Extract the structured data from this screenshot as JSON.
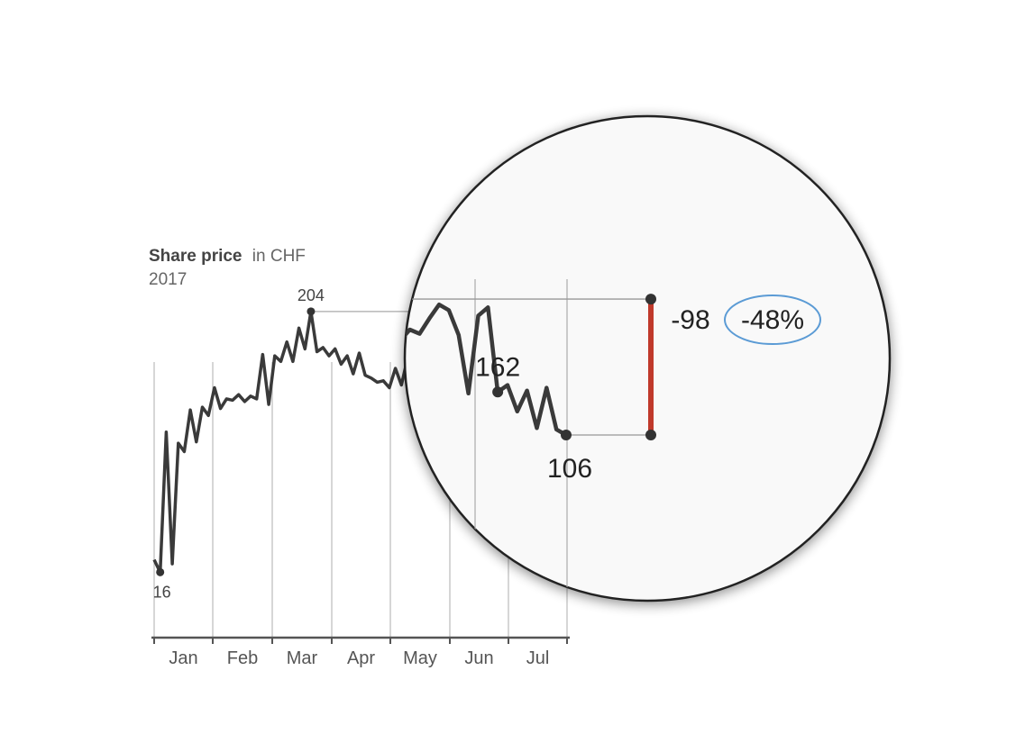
{
  "chart_data": {
    "type": "line",
    "title": "Share price",
    "title_unit": "in CHF",
    "subtitle": "2017",
    "categories": [
      "Jan",
      "Feb",
      "Mar",
      "Apr",
      "May",
      "Jun",
      "Jul"
    ],
    "x": [
      1,
      2,
      3,
      4,
      5,
      6,
      7,
      8,
      9,
      10,
      11,
      12,
      13,
      14,
      15,
      16,
      17,
      18,
      19,
      20,
      21,
      22,
      23,
      24,
      25,
      26,
      27,
      28,
      29,
      30,
      31,
      32,
      33,
      34,
      35,
      36,
      37,
      38,
      39,
      40,
      41,
      42,
      43,
      44,
      45,
      46,
      47,
      48,
      49,
      50,
      51,
      52,
      53,
      54,
      55,
      56,
      57,
      58,
      59,
      60,
      61,
      62,
      63,
      64,
      65,
      66,
      67,
      68,
      69
    ],
    "values": [
      25,
      16,
      117,
      22,
      109,
      103,
      133,
      110,
      135,
      129,
      149,
      134,
      141,
      140,
      144,
      139,
      143,
      141,
      173,
      137,
      172,
      168,
      182,
      168,
      192,
      177,
      204,
      175,
      178,
      172,
      177,
      166,
      172,
      159,
      174,
      158,
      156,
      153,
      154,
      149,
      163,
      151,
      170,
      168,
      165,
      175,
      171,
      165,
      174,
      162,
      179,
      174,
      182,
      179,
      190,
      200,
      196,
      178,
      136,
      192,
      198,
      137,
      142,
      123,
      138,
      111,
      140,
      110,
      106
    ],
    "ylim": [
      0,
      210
    ],
    "annotations": {
      "min_label": "16",
      "max_label": "204",
      "peak_label": "162",
      "end_label": "106",
      "change_abs": "-98",
      "change_pct": "-48%"
    },
    "colors": {
      "line": "#3a3a3a",
      "drop_bar": "#c0392b",
      "pct_ellipse": "#5b9bd5"
    }
  }
}
